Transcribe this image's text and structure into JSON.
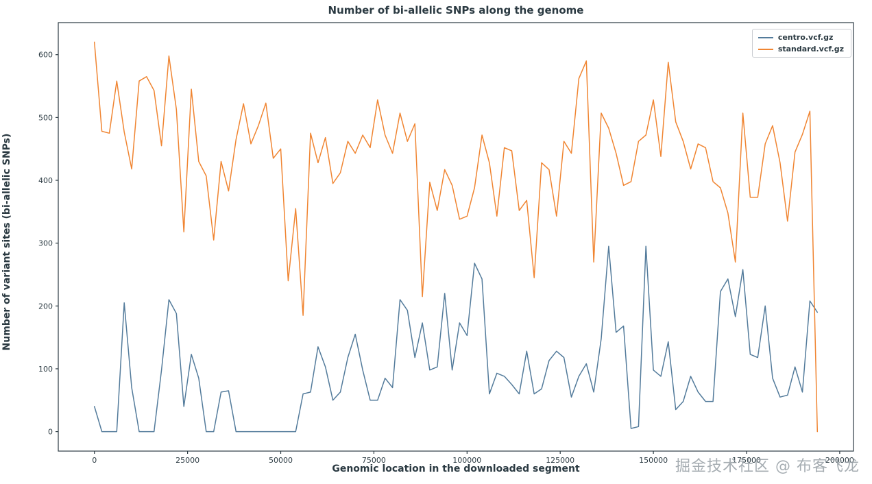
{
  "chart_data": {
    "type": "line",
    "title": "Number of bi-allelic SNPs along the genome",
    "xlabel": "Genomic location in the downloaded segment",
    "ylabel": "Number of variant sites (bi-allelic SNPs)",
    "xlim": [
      -9700,
      203700
    ],
    "ylim": [
      -31,
      651
    ],
    "xticks": [
      0,
      25000,
      50000,
      75000,
      100000,
      125000,
      150000,
      175000,
      200000
    ],
    "yticks": [
      0,
      100,
      200,
      300,
      400,
      500,
      600
    ],
    "grid": false,
    "legend_position": "upper right",
    "text_color": "#2b3a42",
    "x": [
      0,
      2000,
      4000,
      6000,
      8000,
      10000,
      12000,
      14000,
      16000,
      18000,
      20000,
      22000,
      24000,
      26000,
      28000,
      30000,
      32000,
      34000,
      36000,
      38000,
      40000,
      42000,
      44000,
      46000,
      48000,
      50000,
      52000,
      54000,
      56000,
      58000,
      60000,
      62000,
      64000,
      66000,
      68000,
      70000,
      72000,
      74000,
      76000,
      78000,
      80000,
      82000,
      84000,
      86000,
      88000,
      90000,
      92000,
      94000,
      96000,
      98000,
      100000,
      102000,
      104000,
      106000,
      108000,
      110000,
      112000,
      114000,
      116000,
      118000,
      120000,
      122000,
      124000,
      126000,
      128000,
      130000,
      132000,
      134000,
      136000,
      138000,
      140000,
      142000,
      144000,
      146000,
      148000,
      150000,
      152000,
      154000,
      156000,
      158000,
      160000,
      162000,
      164000,
      166000,
      168000,
      170000,
      172000,
      174000,
      176000,
      178000,
      180000,
      182000,
      184000,
      186000,
      188000,
      190000,
      192000,
      194000
    ],
    "series": [
      {
        "name": "centro.vcf.gz",
        "color": "#537b9b",
        "values": [
          40,
          0,
          0,
          0,
          205,
          70,
          0,
          0,
          0,
          98,
          210,
          188,
          40,
          123,
          85,
          0,
          0,
          63,
          65,
          0,
          0,
          0,
          0,
          0,
          0,
          0,
          0,
          0,
          60,
          63,
          135,
          103,
          50,
          63,
          118,
          155,
          98,
          50,
          50,
          85,
          70,
          210,
          193,
          118,
          173,
          98,
          103,
          220,
          98,
          173,
          153,
          268,
          243,
          60,
          93,
          88,
          75,
          60,
          128,
          60,
          68,
          113,
          128,
          118,
          55,
          88,
          108,
          63,
          148,
          295,
          158,
          168,
          5,
          8,
          295,
          98,
          88,
          143,
          35,
          48,
          88,
          63,
          48,
          48,
          223,
          243,
          183,
          258,
          123,
          118,
          200,
          85,
          55,
          58,
          103,
          63,
          208,
          190
        ]
      },
      {
        "name": "standard.vcf.gz",
        "color": "#f08532",
        "values": [
          620,
          478,
          475,
          558,
          477,
          418,
          558,
          565,
          543,
          455,
          598,
          513,
          318,
          545,
          430,
          407,
          305,
          430,
          383,
          465,
          522,
          458,
          487,
          523,
          435,
          450,
          240,
          355,
          185,
          475,
          428,
          468,
          395,
          412,
          462,
          443,
          472,
          452,
          528,
          472,
          443,
          507,
          462,
          490,
          215,
          397,
          352,
          417,
          392,
          338,
          343,
          388,
          472,
          428,
          343,
          452,
          447,
          352,
          368,
          245,
          428,
          417,
          343,
          462,
          443,
          562,
          590,
          270,
          507,
          483,
          443,
          392,
          398,
          462,
          472,
          528,
          438,
          588,
          493,
          462,
          418,
          458,
          452,
          398,
          388,
          348,
          270,
          507,
          373,
          373,
          458,
          487,
          428,
          335,
          445,
          473,
          510,
          0
        ]
      }
    ]
  },
  "watermark": {
    "text": "掘金技术社区 @ 布客飞龙"
  }
}
